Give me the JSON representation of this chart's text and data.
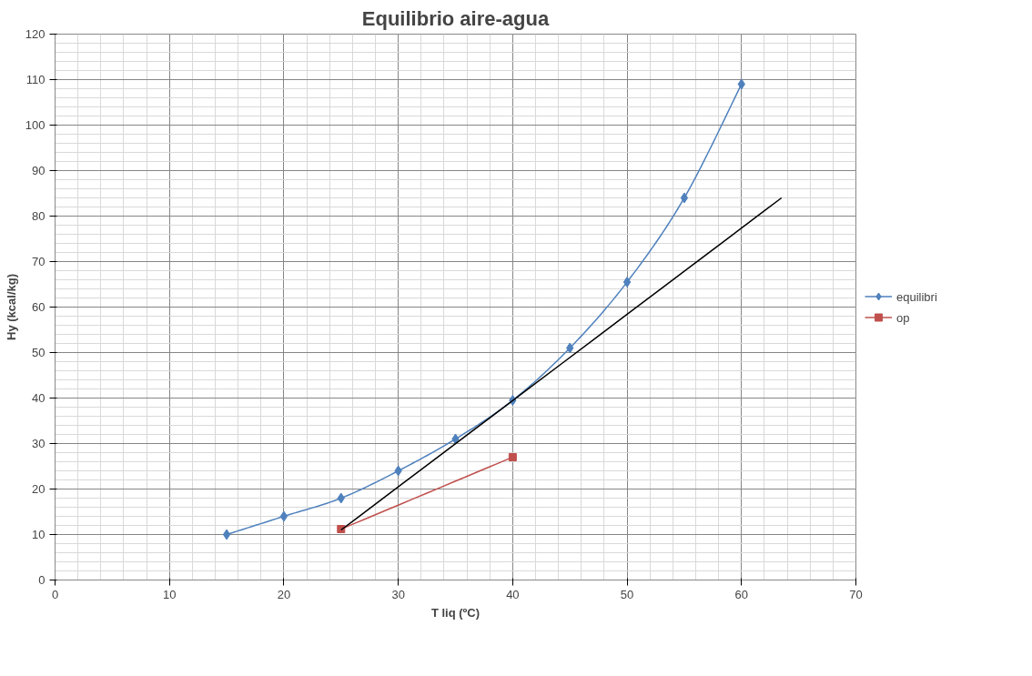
{
  "chart_data": {
    "type": "line",
    "title": "Equilibrio aire-agua",
    "xlabel": "T liq (ºC)",
    "ylabel": "Hy (kcal/kg)",
    "xlim": [
      0,
      70
    ],
    "ylim": [
      0,
      120
    ],
    "xticks": [
      0,
      10,
      20,
      30,
      40,
      50,
      60,
      70
    ],
    "yticks": [
      0,
      10,
      20,
      30,
      40,
      50,
      60,
      70,
      80,
      90,
      100,
      110,
      120
    ],
    "grid": true,
    "legend": "right",
    "series": [
      {
        "name": "equilibri",
        "color": "#4f81bd",
        "marker": "diamond",
        "x": [
          15,
          20,
          25,
          30,
          35,
          40,
          45,
          50,
          55,
          60
        ],
        "values": [
          10,
          14,
          18,
          24,
          31,
          39.5,
          51,
          65.5,
          84,
          109
        ]
      },
      {
        "name": "op",
        "color": "#c0504d",
        "marker": "square",
        "x": [
          25,
          40
        ],
        "values": [
          11.2,
          27
        ]
      },
      {
        "color": "#000000",
        "marker": "none",
        "x": [
          25,
          63.5
        ],
        "values": [
          11,
          84
        ]
      }
    ]
  }
}
